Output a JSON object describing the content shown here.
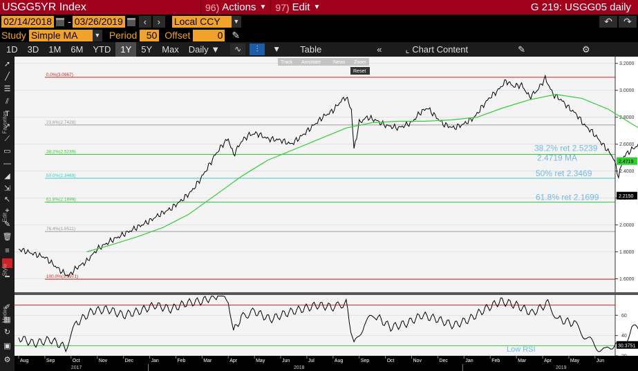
{
  "title_bar": {
    "ticker": "USGG5YR Index",
    "actions": {
      "num": "96)",
      "label": "Actions"
    },
    "edit": {
      "num": "97)",
      "label": "Edit"
    },
    "chart_title": "G 219: USGG05 daily"
  },
  "date_bar": {
    "start_date": "02/14/2018",
    "end_date": "03/26/2019",
    "currency": "Local CCY"
  },
  "study_bar": {
    "study_label": "Study",
    "study_value": "Simple MA",
    "period_label": "Period",
    "period_value": "50",
    "offset_label": "Offset",
    "offset_value": "0"
  },
  "range_bar": {
    "ranges": [
      "1D",
      "3D",
      "1M",
      "6M",
      "YTD",
      "1Y",
      "5Y",
      "Max"
    ],
    "active_range": "1Y",
    "frequency": "Daily",
    "table_label": "Table",
    "chart_content_label": "Chart Content"
  },
  "left_toolbar": {
    "labels": [
      "Favorites",
      "Edit",
      "Style",
      "Modes"
    ]
  },
  "chart_toolbar": {
    "buttons": [
      "Track",
      "Annotate",
      "News",
      "Zoom"
    ],
    "reset_label": "Reset"
  },
  "colors": {
    "title_bg": "#a1001d",
    "amber": "#f2a22b",
    "price_line": "#000000",
    "ma_line": "#33cc33",
    "fib_0": "#cc2222",
    "fib_23": "#999999",
    "fib_38": "#33cc33",
    "fib_50": "#33cccc",
    "fib_61": "#33cc33",
    "fib_76": "#999999",
    "fib_100": "#cc2222",
    "annotation": "#73b9e6"
  },
  "chart_data": [
    {
      "type": "line",
      "ylim": [
        1.5,
        3.25
      ],
      "yticks": [
        "3.2000",
        "3.0000",
        "2.8000",
        "2.6000",
        "2.4000",
        "2.2000",
        "2.0000",
        "1.8000",
        "1.6000"
      ],
      "x_months": [
        "Aug",
        "Sep",
        "Oct",
        "Nov",
        "Dec",
        "Jan",
        "Feb",
        "Mar",
        "Apr",
        "May",
        "Jun",
        "Jul",
        "Aug",
        "Sep",
        "Oct",
        "Nov",
        "Dec",
        "Jan",
        "Feb",
        "Mar",
        "Apr",
        "May",
        "Jun"
      ],
      "x_years": [
        "2017",
        "2018",
        "2019"
      ],
      "fib_levels": [
        {
          "label": "0.0%(3.0967)",
          "value": 3.0967
        },
        {
          "label": "23.6%(2.7428)",
          "value": 2.7428
        },
        {
          "label": "38.2%(2.5239)",
          "value": 2.5239
        },
        {
          "label": "50.0%(2.3469)",
          "value": 2.3469
        },
        {
          "label": "61.8%(2.1699)",
          "value": 2.1699
        },
        {
          "label": "76.4%(1.9511)",
          "value": 1.9511
        },
        {
          "label": "100.0%(1.5971)",
          "value": 1.5971
        }
      ],
      "annotations": [
        {
          "text": "38.2% ret 2.5239",
          "value": 2.5239
        },
        {
          "text": "2.4719 MA",
          "value": 2.4719
        },
        {
          "text": "50% ret 2.3469",
          "value": 2.3469
        },
        {
          "text": "61.8% ret 2.1699",
          "value": 2.1699
        }
      ],
      "right_tags": [
        {
          "text": "2.4719",
          "value": 2.4719,
          "bg": "#33cc33"
        },
        {
          "text": "2.2150",
          "value": 2.215,
          "bg": "#000000"
        }
      ],
      "series": [
        {
          "name": "USGG5YR",
          "points": [
            [
              0.0,
              1.82
            ],
            [
              1.0,
              1.76
            ],
            [
              1.6,
              1.66
            ],
            [
              1.9,
              1.62
            ],
            [
              2.2,
              1.68
            ],
            [
              2.6,
              1.73
            ],
            [
              3.0,
              1.82
            ],
            [
              3.5,
              1.88
            ],
            [
              4.0,
              1.93
            ],
            [
              4.5,
              1.98
            ],
            [
              5.0,
              2.03
            ],
            [
              5.4,
              2.08
            ],
            [
              5.8,
              2.12
            ],
            [
              6.2,
              2.18
            ],
            [
              6.6,
              2.25
            ],
            [
              6.9,
              2.33
            ],
            [
              7.2,
              2.42
            ],
            [
              7.5,
              2.52
            ],
            [
              7.8,
              2.6
            ],
            [
              8.0,
              2.64
            ],
            [
              8.2,
              2.52
            ],
            [
              8.5,
              2.62
            ],
            [
              8.8,
              2.67
            ],
            [
              9.1,
              2.68
            ],
            [
              9.5,
              2.64
            ],
            [
              10.0,
              2.63
            ],
            [
              10.4,
              2.6
            ],
            [
              10.8,
              2.66
            ],
            [
              11.2,
              2.73
            ],
            [
              11.6,
              2.8
            ],
            [
              12.0,
              2.85
            ],
            [
              12.3,
              2.92
            ],
            [
              12.5,
              2.95
            ],
            [
              12.7,
              2.86
            ],
            [
              12.8,
              2.56
            ],
            [
              13.0,
              2.76
            ],
            [
              13.3,
              2.8
            ],
            [
              13.6,
              2.78
            ],
            [
              14.0,
              2.74
            ],
            [
              14.5,
              2.72
            ],
            [
              15.0,
              2.76
            ],
            [
              15.3,
              2.83
            ],
            [
              15.6,
              2.87
            ],
            [
              15.9,
              2.81
            ],
            [
              16.2,
              2.75
            ],
            [
              16.6,
              2.72
            ],
            [
              17.0,
              2.75
            ],
            [
              17.4,
              2.8
            ],
            [
              17.7,
              2.88
            ],
            [
              18.0,
              2.95
            ],
            [
              18.3,
              3.0
            ],
            [
              18.6,
              3.07
            ],
            [
              18.9,
              3.03
            ],
            [
              19.2,
              3.04
            ],
            [
              19.5,
              2.95
            ],
            [
              19.8,
              3.0
            ],
            [
              20.1,
              3.09
            ],
            [
              20.4,
              2.97
            ],
            [
              20.7,
              2.93
            ],
            [
              21.0,
              2.87
            ],
            [
              21.3,
              2.82
            ],
            [
              21.6,
              2.74
            ],
            [
              21.9,
              2.69
            ],
            [
              22.2,
              2.62
            ],
            [
              22.5,
              2.55
            ],
            [
              22.7,
              2.5
            ],
            [
              22.9,
              2.36
            ],
            [
              23.1,
              2.51
            ],
            [
              23.4,
              2.56
            ],
            [
              23.7,
              2.6
            ],
            [
              24.0,
              2.54
            ],
            [
              24.3,
              2.52
            ],
            [
              24.6,
              2.46
            ],
            [
              24.9,
              2.51
            ],
            [
              25.2,
              2.49
            ],
            [
              25.5,
              2.5
            ],
            [
              25.8,
              2.47
            ],
            [
              26.1,
              2.53
            ],
            [
              26.4,
              2.44
            ],
            [
              26.7,
              2.41
            ],
            [
              27.0,
              2.4
            ],
            [
              27.3,
              2.33
            ],
            [
              27.5,
              2.22
            ],
            [
              27.7,
              2.215
            ]
          ]
        },
        {
          "name": "Simple MA",
          "points": [
            [
              2.6,
              1.8
            ],
            [
              3.5,
              1.85
            ],
            [
              4.5,
              1.91
            ],
            [
              5.5,
              1.98
            ],
            [
              6.5,
              2.08
            ],
            [
              7.5,
              2.22
            ],
            [
              8.5,
              2.36
            ],
            [
              9.5,
              2.48
            ],
            [
              10.5,
              2.56
            ],
            [
              11.5,
              2.64
            ],
            [
              12.5,
              2.72
            ],
            [
              13.5,
              2.76
            ],
            [
              14.5,
              2.77
            ],
            [
              15.5,
              2.77
            ],
            [
              16.5,
              2.78
            ],
            [
              17.5,
              2.8
            ],
            [
              18.5,
              2.87
            ],
            [
              19.5,
              2.93
            ],
            [
              20.5,
              2.97
            ],
            [
              21.5,
              2.94
            ],
            [
              22.5,
              2.86
            ],
            [
              23.5,
              2.74
            ],
            [
              24.5,
              2.63
            ],
            [
              25.5,
              2.56
            ],
            [
              26.5,
              2.51
            ],
            [
              27.7,
              2.47
            ]
          ]
        }
      ]
    },
    {
      "type": "line",
      "ylim": [
        20,
        80
      ],
      "yticks": [
        "60",
        "40",
        "20"
      ],
      "reference_lines": [
        70,
        30
      ],
      "annotations": [
        {
          "text": "Low RSI"
        }
      ],
      "right_tags": [
        {
          "text": "30.3751",
          "value": 30.3751,
          "bg": "#000000"
        }
      ],
      "series": [
        {
          "name": "RSI",
          "points": [
            [
              0.0,
              38
            ],
            [
              0.6,
              32
            ],
            [
              1.2,
              36
            ],
            [
              1.8,
              28
            ],
            [
              2.2,
              52
            ],
            [
              2.8,
              64
            ],
            [
              3.4,
              66
            ],
            [
              4.0,
              60
            ],
            [
              4.6,
              64
            ],
            [
              5.2,
              70
            ],
            [
              5.8,
              66
            ],
            [
              6.4,
              72
            ],
            [
              7.0,
              74
            ],
            [
              7.6,
              80
            ],
            [
              8.0,
              76
            ],
            [
              8.2,
              44
            ],
            [
              8.5,
              58
            ],
            [
              9.0,
              64
            ],
            [
              9.6,
              56
            ],
            [
              10.2,
              62
            ],
            [
              10.8,
              66
            ],
            [
              11.4,
              70
            ],
            [
              12.0,
              68
            ],
            [
              12.5,
              72
            ],
            [
              12.8,
              30
            ],
            [
              13.2,
              52
            ],
            [
              13.6,
              60
            ],
            [
              14.2,
              48
            ],
            [
              14.8,
              52
            ],
            [
              15.4,
              60
            ],
            [
              16.0,
              56
            ],
            [
              16.6,
              50
            ],
            [
              17.2,
              56
            ],
            [
              17.8,
              66
            ],
            [
              18.4,
              74
            ],
            [
              19.0,
              70
            ],
            [
              19.6,
              62
            ],
            [
              20.2,
              72
            ],
            [
              20.6,
              56
            ],
            [
              21.2,
              52
            ],
            [
              21.6,
              40
            ],
            [
              22.0,
              30
            ],
            [
              22.4,
              24
            ],
            [
              22.8,
              34
            ],
            [
              23.0,
              24
            ],
            [
              23.4,
              48
            ],
            [
              23.8,
              44
            ],
            [
              24.4,
              48
            ],
            [
              25.0,
              40
            ],
            [
              25.6,
              46
            ],
            [
              26.2,
              52
            ],
            [
              26.6,
              44
            ],
            [
              27.0,
              42
            ],
            [
              27.4,
              34
            ],
            [
              27.7,
              30.4
            ]
          ]
        }
      ]
    }
  ]
}
